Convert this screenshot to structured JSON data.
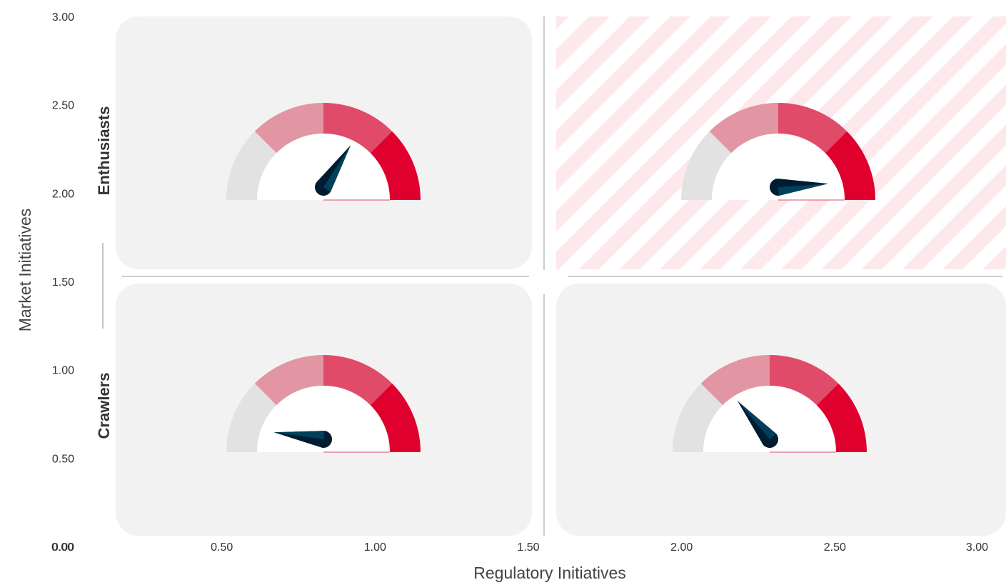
{
  "chart_data": {
    "type": "gauge-quadrant",
    "xlabel": "Regulatory Initiatives",
    "ylabel": "Market Initiatives",
    "xlim": [
      0,
      3
    ],
    "ylim": [
      0,
      3
    ],
    "x_ticks": [
      "0.00",
      "0.50",
      "1.00",
      "1.50",
      "2.00",
      "2.50",
      "3.00"
    ],
    "y_ticks": [
      "0.00",
      "0.50",
      "1.00",
      "1.50",
      "2.00",
      "2.50",
      "3.00"
    ],
    "row_labels": [
      {
        "text": "Enthusiasts",
        "row": "top"
      },
      {
        "text": "Crawlers",
        "row": "bottom"
      }
    ],
    "segment_colors": [
      "#e2e2e2",
      "#e295a2",
      "#e04b69",
      "#e0002d"
    ],
    "panel_color": "#f2f2f2",
    "highlight_color": "#fde8ec",
    "needle_colors": [
      "#001c30",
      "#00405a"
    ],
    "gauges": [
      {
        "quadrant": "top-left",
        "needle_angle_deg": 57,
        "highlighted": false
      },
      {
        "quadrant": "top-right",
        "needle_angle_deg": 4,
        "highlighted": true
      },
      {
        "quadrant": "bottom-left",
        "needle_angle_deg": 172,
        "highlighted": false
      },
      {
        "quadrant": "bottom-right",
        "needle_angle_deg": 130,
        "highlighted": false
      }
    ]
  }
}
